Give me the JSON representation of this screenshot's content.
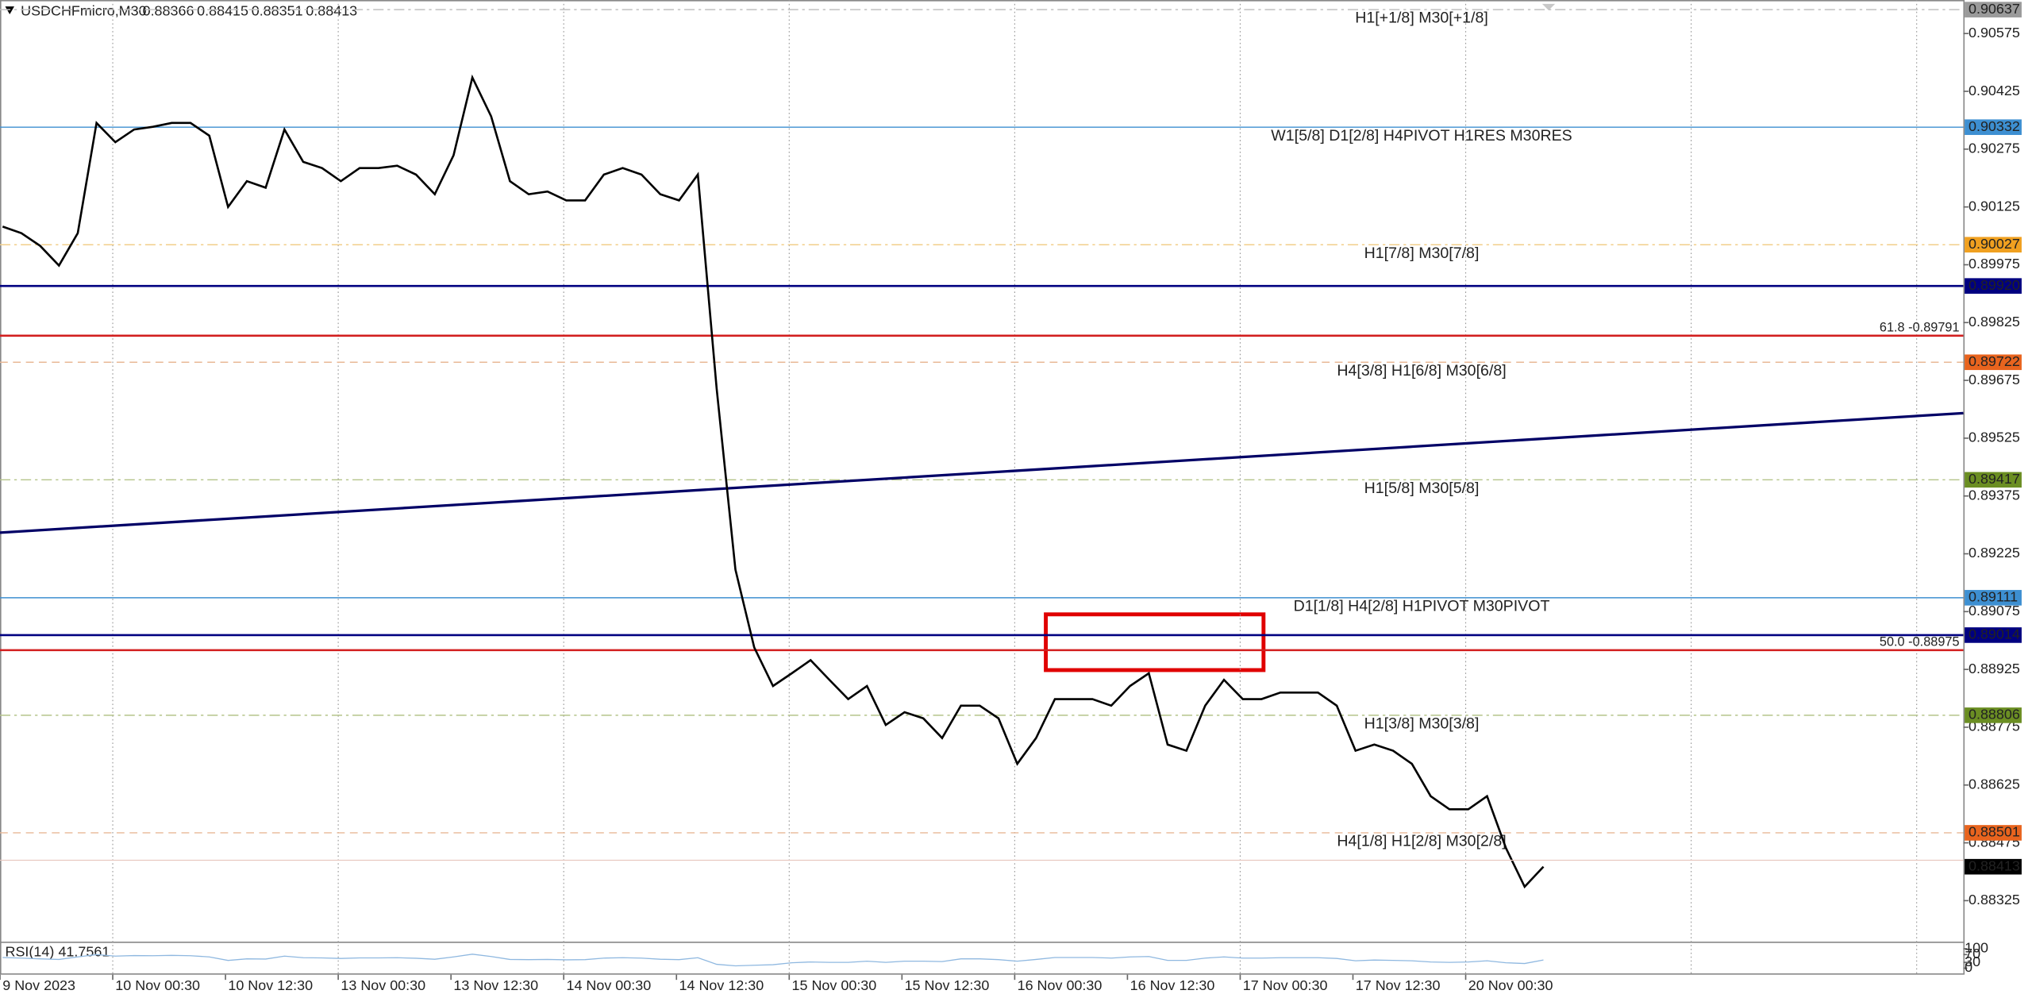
{
  "chart_data": {
    "type": "line",
    "symbol": "USDCHFmicro,M30",
    "ohlc": [
      0.88366,
      0.88415,
      0.88351,
      0.88413
    ],
    "categories": [
      "9 Nov 2023",
      null,
      null,
      null,
      null,
      null,
      "10 Nov 00:30",
      null,
      null,
      null,
      null,
      null,
      "10 Nov 12:30",
      null,
      null,
      null,
      null,
      null,
      "13 Nov 00:30",
      null,
      null,
      null,
      null,
      null,
      "13 Nov 12:30",
      null,
      null,
      null,
      null,
      null,
      "14 Nov 00:30",
      null,
      null,
      null,
      null,
      null,
      "14 Nov 12:30",
      null,
      null,
      null,
      null,
      null,
      "15 Nov 00:30",
      null,
      null,
      null,
      null,
      null,
      "15 Nov 12:30",
      null,
      null,
      null,
      null,
      null,
      "16 Nov 00:30",
      null,
      null,
      null,
      null,
      null,
      "16 Nov 12:30",
      null,
      null,
      null,
      null,
      null,
      "17 Nov 00:30",
      null,
      null,
      null,
      null,
      null,
      "17 Nov 12:30",
      null,
      null,
      null,
      null,
      null,
      "20 Nov 00:30",
      null,
      null,
      null,
      null
    ],
    "values": [
      0.90074,
      0.90057,
      0.90024,
      0.89973,
      0.90057,
      0.90343,
      0.90293,
      0.90326,
      0.90333,
      0.90343,
      0.90343,
      0.9031,
      0.90125,
      0.90192,
      0.90175,
      0.90326,
      0.90242,
      0.90226,
      0.90192,
      0.90226,
      0.90226,
      0.90232,
      0.90209,
      0.90158,
      0.90259,
      0.90461,
      0.9036,
      0.90192,
      0.90158,
      0.90165,
      0.90142,
      0.90142,
      0.90209,
      0.90226,
      0.90209,
      0.90158,
      0.90142,
      0.90209,
      0.89654,
      0.89184,
      0.88982,
      0.88882,
      0.88915,
      0.88949,
      0.88898,
      0.88848,
      0.88882,
      0.88781,
      0.88814,
      0.88798,
      0.88747,
      0.88831,
      0.88831,
      0.88798,
      0.8868,
      0.88747,
      0.88848,
      0.88848,
      0.88848,
      0.88831,
      0.88882,
      0.88915,
      0.8873,
      0.88714,
      0.88831,
      0.88898,
      0.88848,
      0.88848,
      0.88865,
      0.88865,
      0.88865,
      0.88831,
      0.88714,
      0.8873,
      0.88714,
      0.8868,
      0.88596,
      0.88562,
      0.88562,
      0.88596,
      0.88462,
      0.88361,
      0.88413
    ],
    "color": "#000000",
    "ylim": [
      0.88217,
      0.90662
    ],
    "yticks": [
      0.90575,
      0.90425,
      0.90275,
      0.90125,
      0.89975,
      0.89825,
      0.89675,
      0.89525,
      0.89375,
      0.89225,
      0.89075,
      0.88925,
      0.88775,
      0.88625,
      0.88475,
      0.88325
    ],
    "levels": [
      {
        "value": 0.90637,
        "color": "#9a9a9a",
        "text": "H1[+1/8] M30[+1/8]",
        "style": "dashdot"
      },
      {
        "value": 0.90332,
        "color": "#3d8fd1",
        "text": "W1[5/8] D1[2/8] H4PIVOT H1RES M30RES",
        "style": "solid"
      },
      {
        "value": 0.90027,
        "color": "#f0a020",
        "text": "H1[7/8] M30[7/8]",
        "style": "dashdot"
      },
      {
        "value": {
          "value": 0.8992,
          "label": "0.89920"
        },
        "color": "#000080",
        "style": "bold"
      },
      {
        "value": 0.89791,
        "color": "#d21f1f",
        "text": "61.8 -0.89791",
        "style": "fib"
      },
      {
        "value": 0.89722,
        "color": "#e8641e",
        "text": "H4[3/8] H1[6/8] M30[6/8]",
        "style": "dashed"
      },
      {
        "value": 0.89417,
        "color": "#6b8e23",
        "text": "H1[5/8] M30[5/8]",
        "style": "dashdot"
      },
      {
        "value": 0.89111,
        "color": "#3d8fd1",
        "text": "D1[1/8] H4[2/8] H1PIVOT M30PIVOT",
        "style": "solid"
      },
      {
        "value": 0.89014,
        "color": "#000080",
        "style": "bold"
      },
      {
        "value": 0.88975,
        "color": "#d21f1f",
        "text": "50.0 -0.88975",
        "style": "fib"
      },
      {
        "value": 0.88806,
        "color": "#6b8e23",
        "text": "H1[3/8] M30[3/8]",
        "style": "dashdot"
      },
      {
        "value": 0.88501,
        "color": "#e8641e",
        "text": "H4[1/8] H1[2/8] M30[2/8]",
        "style": "dashed"
      }
    ],
    "trendline": {
      "values": [
        0.8928,
        0.8959
      ],
      "color": "#000066"
    },
    "rsi": {
      "label": "RSI(14)",
      "value": 41.7561,
      "color": "#8fb8e0",
      "ylim": [
        0,
        100
      ],
      "yticks": [
        100,
        70,
        30,
        0
      ],
      "values": [
        55,
        52,
        48,
        45,
        58,
        70,
        62,
        65,
        64,
        66,
        64,
        58,
        40,
        48,
        47,
        62,
        54,
        53,
        50,
        53,
        53,
        54,
        51,
        46,
        58,
        72,
        60,
        45,
        44,
        45,
        43,
        44,
        52,
        54,
        52,
        46,
        44,
        54,
        20,
        12,
        15,
        18,
        28,
        32,
        30,
        30,
        36,
        30,
        36,
        36,
        34,
        48,
        48,
        44,
        36,
        45,
        55,
        55,
        55,
        52,
        58,
        60,
        40,
        40,
        52,
        58,
        52,
        52,
        54,
        54,
        54,
        50,
        38,
        42,
        40,
        38,
        32,
        30,
        32,
        38,
        28,
        24,
        42
      ]
    }
  }
}
